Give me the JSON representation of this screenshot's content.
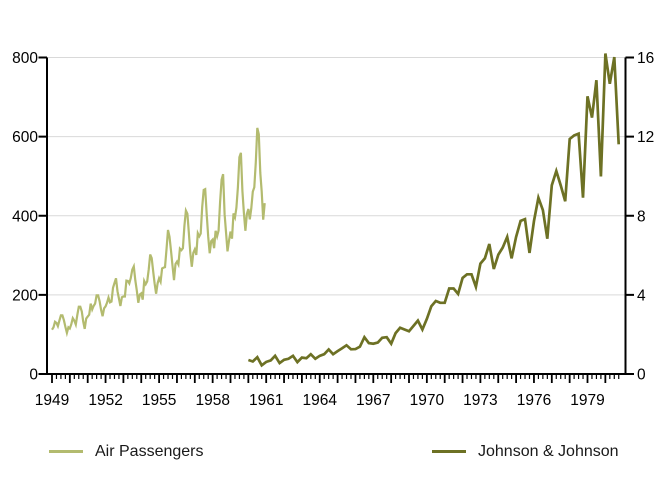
{
  "chart_data": {
    "type": "line",
    "grid": "horizontal",
    "legend_position": "bottom",
    "x": {
      "domain": [
        1948.7,
        1981.1
      ],
      "tick_start": 1949,
      "tick_end": 1980.75,
      "minor_step": 0.25,
      "label_years": [
        1949,
        1952,
        1955,
        1958,
        1961,
        1964,
        1967,
        1970,
        1973,
        1976,
        1979
      ]
    },
    "y_left": {
      "ticks": [
        0,
        200,
        400,
        600,
        800
      ],
      "range": [
        0,
        800
      ]
    },
    "y_right": {
      "ticks": [
        0,
        4,
        8,
        12,
        16
      ],
      "range": [
        0,
        16
      ]
    },
    "series": [
      {
        "name": "Air Passengers",
        "axis": "left",
        "color": "#b3bb6f",
        "stroke_width": 2.2,
        "start": 1949,
        "points_per_year": 12,
        "values": [
          112,
          118,
          132,
          129,
          121,
          135,
          148,
          148,
          136,
          119,
          104,
          118,
          115,
          126,
          141,
          135,
          125,
          149,
          170,
          170,
          158,
          133,
          114,
          140,
          145,
          150,
          178,
          163,
          172,
          178,
          199,
          199,
          184,
          162,
          146,
          166,
          171,
          180,
          193,
          181,
          183,
          218,
          230,
          242,
          209,
          191,
          172,
          194,
          196,
          196,
          236,
          235,
          229,
          243,
          264,
          272,
          237,
          211,
          180,
          201,
          204,
          188,
          235,
          227,
          234,
          264,
          302,
          293,
          259,
          229,
          203,
          229,
          242,
          233,
          267,
          269,
          270,
          315,
          364,
          347,
          312,
          274,
          237,
          278,
          284,
          277,
          317,
          313,
          318,
          374,
          413,
          405,
          355,
          306,
          271,
          306,
          315,
          301,
          356,
          348,
          355,
          422,
          465,
          467,
          404,
          347,
          305,
          336,
          340,
          318,
          362,
          348,
          363,
          435,
          491,
          505,
          404,
          359,
          310,
          337,
          360,
          342,
          406,
          396,
          420,
          472,
          548,
          559,
          463,
          407,
          362,
          405,
          417,
          391,
          419,
          461,
          472,
          535,
          622,
          606,
          508,
          461,
          390,
          432
        ]
      },
      {
        "name": "Johnson & Johnson",
        "axis": "right",
        "color": "#6d7124",
        "stroke_width": 2.7,
        "start": 1960,
        "points_per_year": 4,
        "values": [
          0.71,
          0.63,
          0.85,
          0.44,
          0.61,
          0.69,
          0.92,
          0.55,
          0.72,
          0.77,
          0.92,
          0.6,
          0.83,
          0.8,
          1.0,
          0.77,
          0.92,
          1.0,
          1.24,
          1.0,
          1.16,
          1.3,
          1.45,
          1.25,
          1.26,
          1.38,
          1.86,
          1.56,
          1.53,
          1.59,
          1.83,
          1.86,
          1.53,
          2.07,
          2.34,
          2.25,
          2.16,
          2.43,
          2.7,
          2.25,
          2.79,
          3.42,
          3.69,
          3.6,
          3.6,
          4.32,
          4.32,
          4.05,
          4.86,
          5.04,
          5.04,
          4.41,
          5.58,
          5.85,
          6.57,
          5.31,
          6.03,
          6.39,
          6.93,
          5.85,
          6.93,
          7.74,
          7.83,
          6.12,
          7.74,
          8.91,
          8.28,
          6.84,
          9.54,
          10.26,
          9.54,
          8.73,
          11.88,
          12.06,
          12.15,
          8.91,
          14.04,
          12.96,
          14.85,
          9.99,
          16.2,
          14.67,
          16.02,
          11.61
        ]
      }
    ]
  }
}
